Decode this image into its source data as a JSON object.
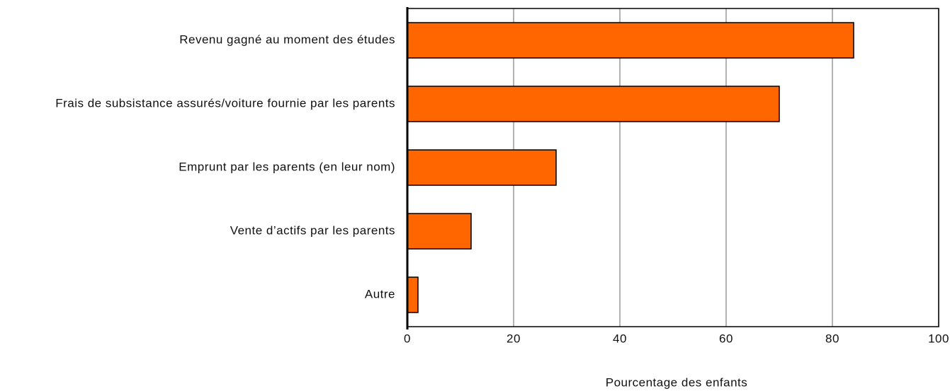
{
  "chart_data": {
    "type": "bar",
    "orientation": "horizontal",
    "categories": [
      "Revenu gagné au moment des études",
      "Frais de subsistance assurés/voiture fournie par les parents",
      "Emprunt par les parents (en leur nom)",
      "Vente d’actifs par les parents",
      "Autre"
    ],
    "values": [
      84,
      70,
      28,
      12,
      2
    ],
    "color": "#ff6600",
    "xlabel": "Pourcentage des enfants",
    "xlim": [
      0,
      100
    ],
    "xticks": [
      0,
      20,
      40,
      60,
      80,
      100
    ],
    "grid": true
  }
}
